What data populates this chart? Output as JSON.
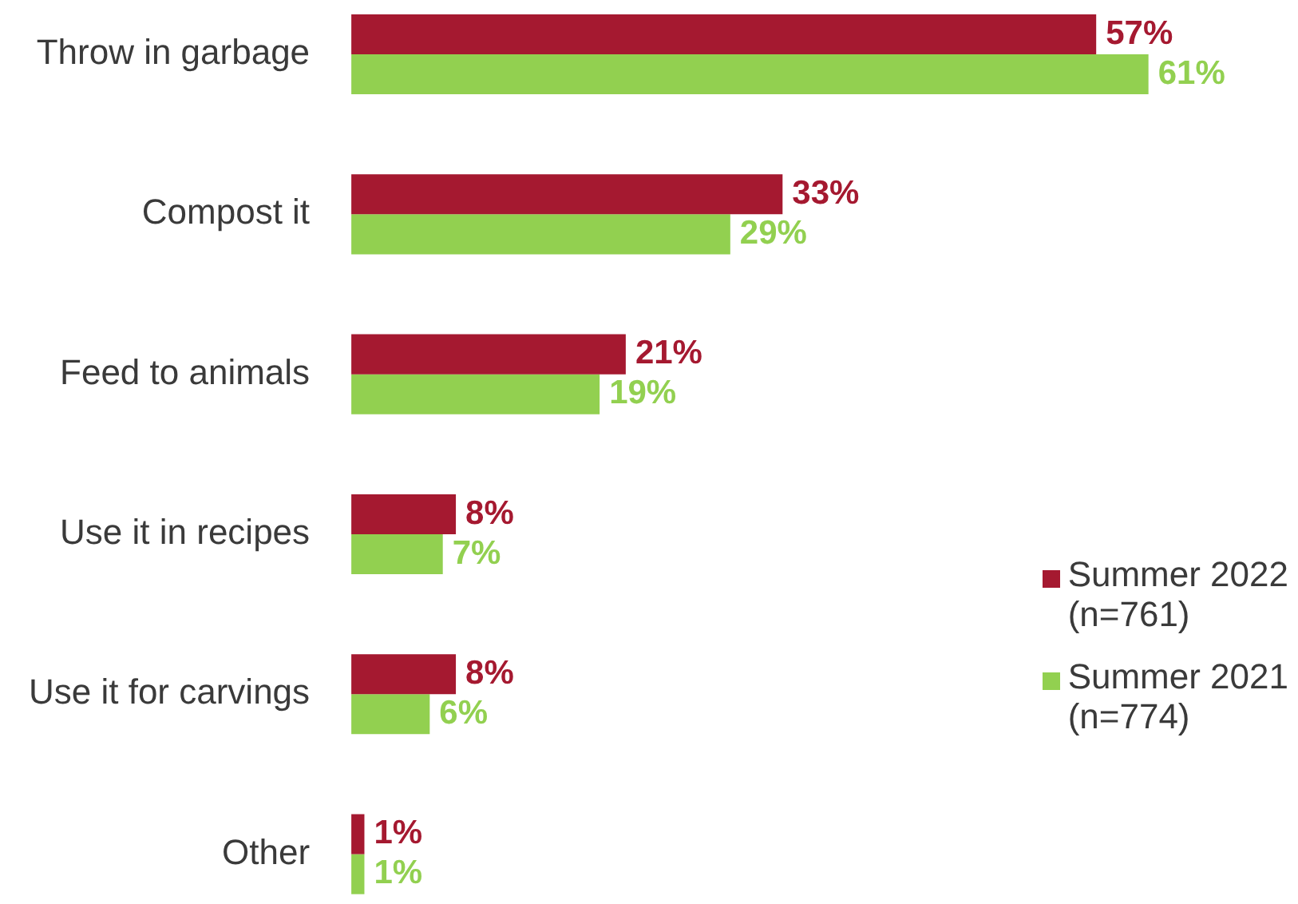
{
  "chart_data": {
    "type": "bar",
    "orientation": "horizontal",
    "categories": [
      "Throw in garbage",
      "Compost it",
      "Feed to animals",
      "Use it in recipes",
      "Use it for carvings",
      "Other"
    ],
    "series": [
      {
        "name": "Summer 2022\n(n=761)",
        "color": "#a51930",
        "values": [
          57,
          33,
          21,
          8,
          8,
          1
        ],
        "value_labels": [
          "57%",
          "33%",
          "21%",
          "8%",
          "8%",
          "1%"
        ]
      },
      {
        "name": "Summer 2021\n(n=774)",
        "color": "#92d050",
        "values": [
          61,
          29,
          19,
          7,
          6,
          1
        ],
        "value_labels": [
          "61%",
          "29%",
          "19%",
          "7%",
          "6%",
          "1%"
        ]
      }
    ],
    "legend": "bottom right"
  }
}
